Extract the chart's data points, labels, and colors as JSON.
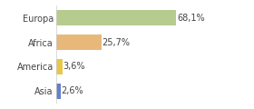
{
  "categories": [
    "Europa",
    "Africa",
    "America",
    "Asia"
  ],
  "values": [
    68.1,
    25.7,
    3.6,
    2.6
  ],
  "labels": [
    "68,1%",
    "25,7%",
    "3,6%",
    "2,6%"
  ],
  "bar_colors": [
    "#b5cc8e",
    "#e8b87a",
    "#e8c84a",
    "#6680c8"
  ],
  "xlim": [
    0,
    95
  ],
  "background_color": "#ffffff",
  "label_fontsize": 7,
  "tick_fontsize": 7,
  "bar_height": 0.65
}
